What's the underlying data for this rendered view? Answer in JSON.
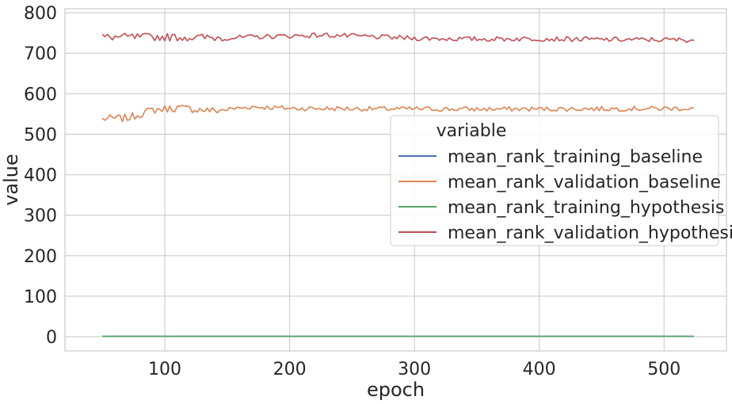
{
  "chart_data": {
    "type": "line",
    "xlabel": "epoch",
    "ylabel": "value",
    "xlim": [
      20,
      550
    ],
    "ylim": [
      -35,
      810
    ],
    "x_ticks": [
      100,
      200,
      300,
      400,
      500
    ],
    "y_ticks": [
      0,
      100,
      200,
      300,
      400,
      500,
      600,
      700,
      800
    ],
    "grid": true,
    "legend": {
      "title": "variable",
      "placement": "center-right"
    },
    "x_range": [
      50,
      525
    ],
    "x_step": 2,
    "series": [
      {
        "name": "mean_rank_training_baseline",
        "color": "#4c72b0",
        "trend": [
          [
            50,
            1
          ],
          [
            525,
            1
          ]
        ],
        "noise": 0
      },
      {
        "name": "mean_rank_validation_baseline",
        "color": "#dd8452",
        "trend": [
          [
            50,
            538
          ],
          [
            70,
            540
          ],
          [
            90,
            560
          ],
          [
            110,
            565
          ],
          [
            140,
            558
          ],
          [
            170,
            568
          ],
          [
            200,
            564
          ],
          [
            260,
            563
          ],
          [
            350,
            562
          ],
          [
            450,
            563
          ],
          [
            525,
            564
          ]
        ],
        "noise": 6
      },
      {
        "name": "mean_rank_training_hypothesis",
        "color": "#55a868",
        "trend": [
          [
            50,
            1
          ],
          [
            525,
            1
          ]
        ],
        "noise": 0
      },
      {
        "name": "mean_rank_validation_hypothesis",
        "color": "#c44e52",
        "trend": [
          [
            50,
            740
          ],
          [
            100,
            740
          ],
          [
            150,
            738
          ],
          [
            200,
            743
          ],
          [
            230,
            745
          ],
          [
            300,
            737
          ],
          [
            350,
            735
          ],
          [
            400,
            736
          ],
          [
            450,
            734
          ],
          [
            525,
            733
          ]
        ],
        "noise": 6
      }
    ]
  }
}
